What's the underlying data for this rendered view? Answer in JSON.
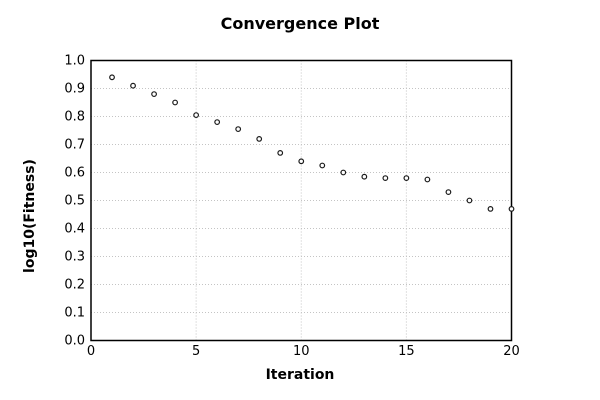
{
  "chart_data": {
    "type": "scatter",
    "title": "Convergence Plot",
    "xlabel": "Iteration",
    "ylabel": "log10(Fitness)",
    "x": [
      1,
      2,
      3,
      4,
      5,
      6,
      7,
      8,
      9,
      10,
      11,
      12,
      13,
      14,
      15,
      16,
      17,
      18,
      19,
      20
    ],
    "y": [
      0.94,
      0.91,
      0.88,
      0.85,
      0.805,
      0.78,
      0.755,
      0.72,
      0.67,
      0.64,
      0.625,
      0.6,
      0.585,
      0.58,
      0.58,
      0.575,
      0.53,
      0.5,
      0.47,
      0.47
    ],
    "xlim": [
      0,
      20
    ],
    "ylim": [
      0.0,
      1.0
    ],
    "xticks": {
      "values": [
        0,
        5,
        10,
        15,
        20
      ],
      "labels": [
        "0",
        "5",
        "10",
        "15",
        "20"
      ]
    },
    "yticks": {
      "values": [
        0.0,
        0.1,
        0.2,
        0.3,
        0.4,
        0.5,
        0.6,
        0.7,
        0.8,
        0.9,
        1.0
      ],
      "labels": [
        "0.0",
        "0.1",
        "0.2",
        "0.3",
        "0.4",
        "0.5",
        "0.6",
        "0.7",
        "0.8",
        "0.9",
        "1.0"
      ]
    },
    "grid": true,
    "legend_position": "none",
    "marker": "open-circle",
    "colors": {
      "marker": "#1a1a1a",
      "grid": "#c4c4c4",
      "axis_border": "#000000",
      "background": "#ffffff",
      "text": "#000000"
    }
  }
}
